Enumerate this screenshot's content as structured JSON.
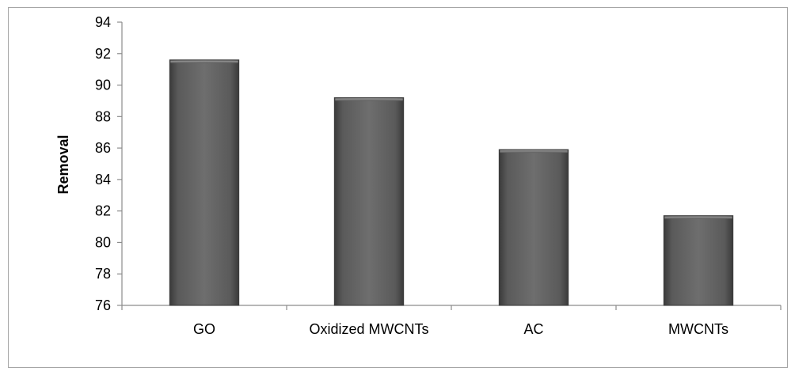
{
  "chart_data": {
    "type": "bar",
    "categories": [
      "GO",
      "Oxidized MWCNTs",
      "AC",
      "MWCNTs"
    ],
    "values": [
      91.6,
      89.2,
      85.9,
      81.7
    ],
    "title": "",
    "xlabel": "",
    "ylabel": "Removal",
    "ylim": [
      76,
      94
    ],
    "yticks": [
      76,
      78,
      80,
      82,
      84,
      86,
      88,
      90,
      92,
      94
    ],
    "grid": false,
    "legend": "none",
    "bar_color": "#5c5c5c"
  }
}
